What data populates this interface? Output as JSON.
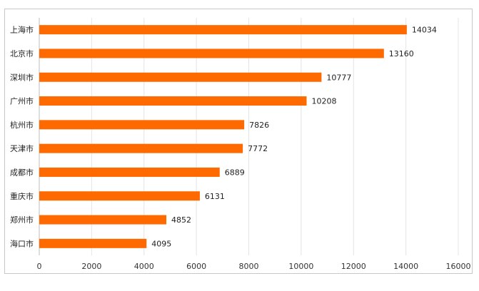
{
  "chart_data": {
    "type": "bar",
    "orientation": "horizontal",
    "title": "",
    "categories": [
      "上海市",
      "北京市",
      "深圳市",
      "广州市",
      "杭州市",
      "天津市",
      "成都市",
      "重庆市",
      "郑州市",
      "海口市"
    ],
    "values": [
      14034,
      13160,
      10777,
      10208,
      7826,
      7772,
      6889,
      6131,
      4852,
      4095
    ],
    "xlim": [
      0,
      16000
    ],
    "xticks": [
      0,
      2000,
      4000,
      6000,
      8000,
      10000,
      12000,
      14000,
      16000
    ],
    "grid": "vertical",
    "bar_color": "#ff6a00"
  }
}
